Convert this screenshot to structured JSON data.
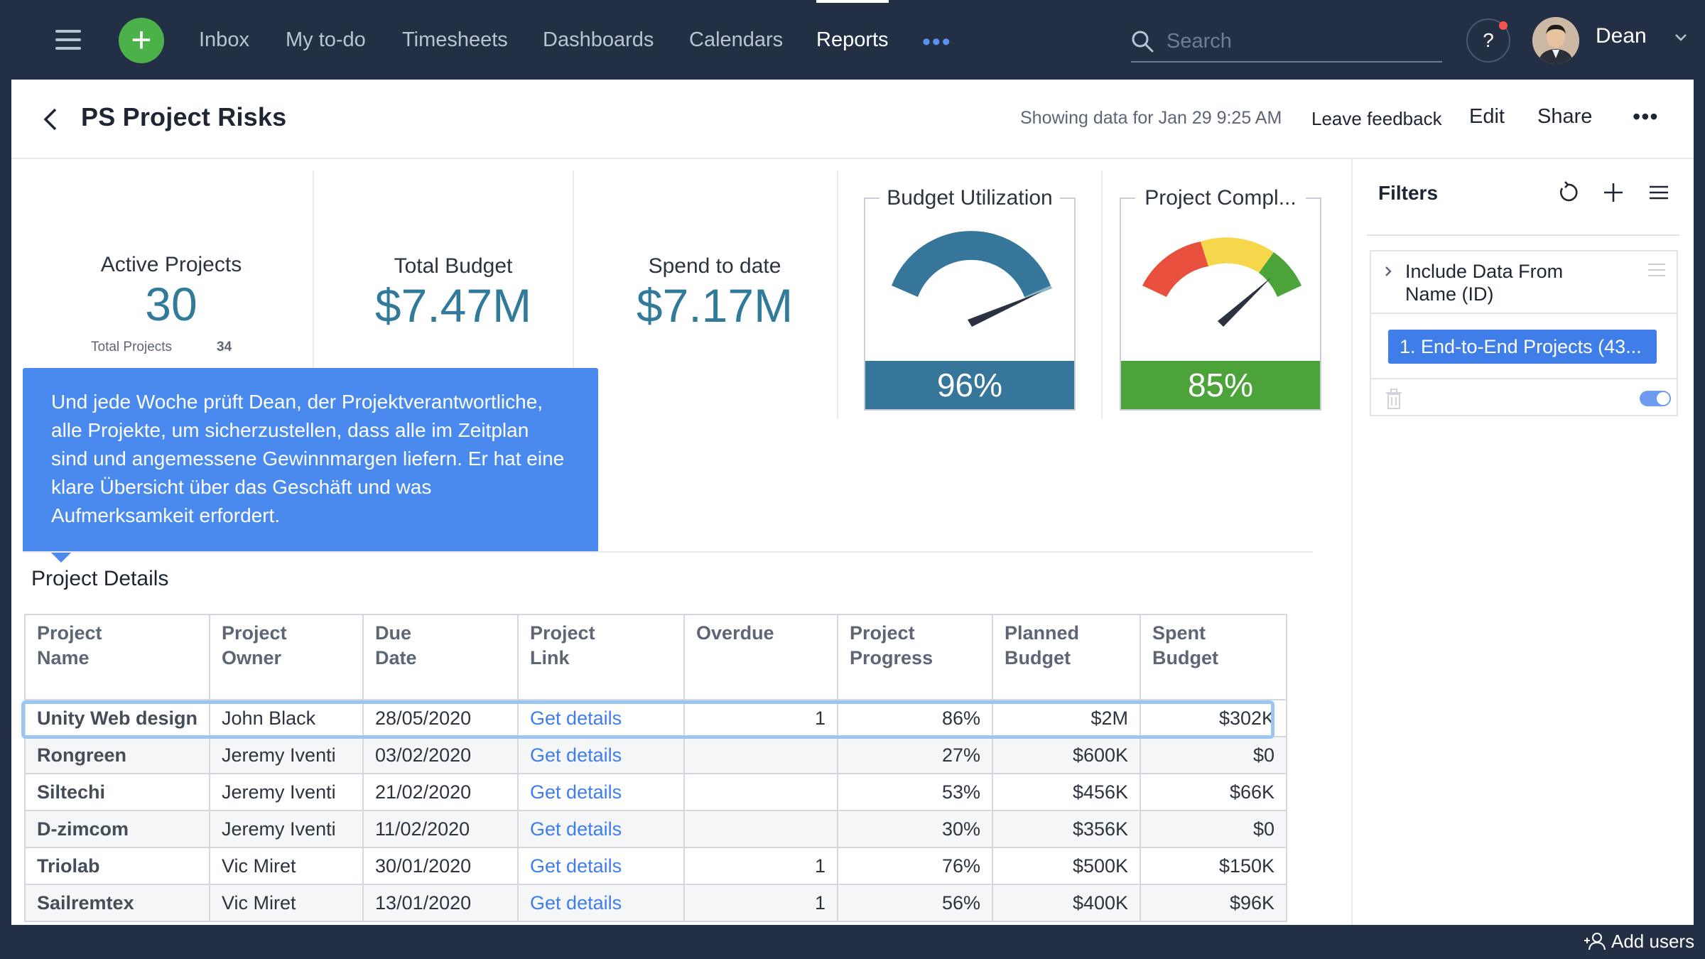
{
  "nav": {
    "items": [
      {
        "label": "Inbox"
      },
      {
        "label": "My to-do"
      },
      {
        "label": "Timesheets"
      },
      {
        "label": "Dashboards"
      },
      {
        "label": "Calendars"
      },
      {
        "label": "Reports",
        "active": true
      }
    ],
    "more_label": "•••",
    "search_placeholder": "Search",
    "help_label": "?",
    "user_name": "Dean"
  },
  "header": {
    "title": "PS Project Risks",
    "showing": "Showing data for Jan 29 9:25 AM",
    "leave_feedback": "Leave feedback",
    "edit": "Edit",
    "share": "Share",
    "more": "•••"
  },
  "kpis": {
    "active_projects": {
      "title": "Active Projects",
      "value": "30",
      "sub_label": "Total Projects",
      "sub_value": "34"
    },
    "total_budget": {
      "title": "Total Budget",
      "value": "$7.47M"
    },
    "spend_to_date": {
      "title": "Spend to date",
      "value": "$7.17M"
    }
  },
  "gauges": {
    "budget": {
      "title": "Budget Utilization",
      "value_label": "96%",
      "value": 0.96,
      "color": "#35769a"
    },
    "completion": {
      "title": "Project Compl...",
      "value_label": "85%",
      "value": 0.85,
      "color": "#4ba33a"
    }
  },
  "tooltip": {
    "text": "Und jede Woche prüft Dean, der Projektverantwortliche, alle Projekte, um sicherzustellen, dass alle im Zeitplan sind und angemessene Gewinnmargen liefern. Er hat eine klare Übersicht über das Geschäft und was Aufmerksamkeit erfordert."
  },
  "section_title": "Project Details",
  "table": {
    "headers": [
      [
        "Project",
        "Name"
      ],
      [
        "Project",
        "Owner"
      ],
      [
        "Due",
        "Date"
      ],
      [
        "Project",
        "Link"
      ],
      [
        "Overdue",
        ""
      ],
      [
        "Project",
        "Progress"
      ],
      [
        "Planned",
        "Budget"
      ],
      [
        "Spent",
        "Budget"
      ]
    ],
    "rows": [
      [
        "Unity Web design",
        "John Black",
        "28/05/2020",
        "Get details",
        "1",
        "86%",
        "$2M",
        "$302K"
      ],
      [
        "Rongreen",
        "Jeremy Iventi",
        "03/02/2020",
        "Get details",
        "",
        "27%",
        "$600K",
        "$0"
      ],
      [
        "Siltechi",
        "Jeremy Iventi",
        "21/02/2020",
        "Get details",
        "",
        "53%",
        "$456K",
        "$66K"
      ],
      [
        "D-zimcom",
        "Jeremy Iventi",
        "11/02/2020",
        "Get details",
        "",
        "30%",
        "$356K",
        "$0"
      ],
      [
        "Triolab",
        "Vic Miret",
        "30/01/2020",
        "Get details",
        "1",
        "76%",
        "$500K",
        "$150K"
      ],
      [
        "Sailremtex",
        "Vic Miret",
        "13/01/2020",
        "Get details",
        "1",
        "56%",
        "$400K",
        "$96K"
      ]
    ]
  },
  "filters": {
    "title": "Filters",
    "filter_label_1": "Include Data From",
    "filter_label_2": "Name (ID)",
    "chip": "1. End-to-End Projects (43..."
  },
  "footer": {
    "add_users": "Add users"
  }
}
